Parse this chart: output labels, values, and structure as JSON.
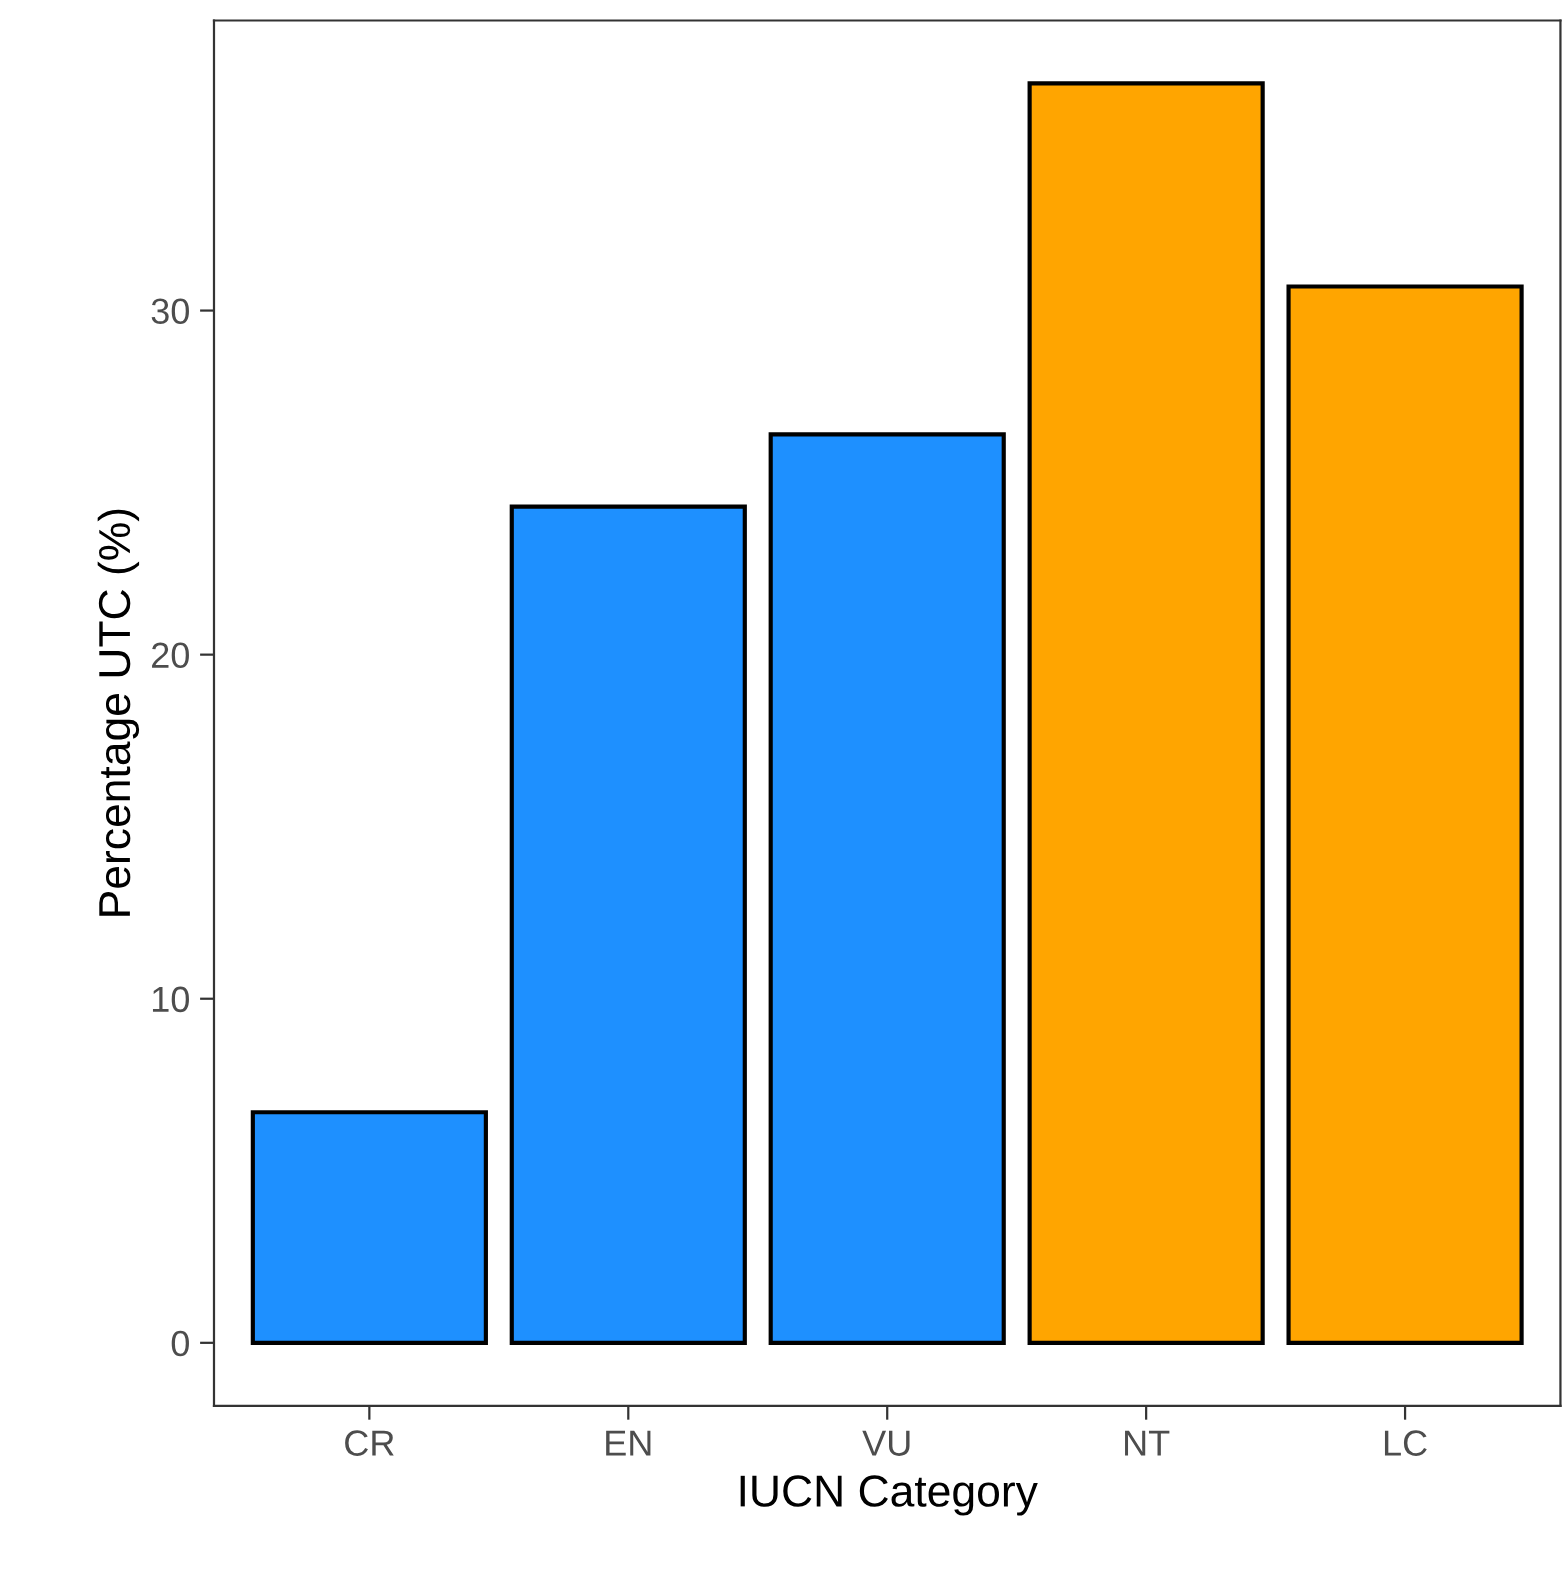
{
  "chart_data": {
    "type": "bar",
    "xlabel": "IUCN Category",
    "ylabel": "Percentage UTC (%)",
    "categories": [
      "CR",
      "EN",
      "VU",
      "NT",
      "LC"
    ],
    "values": [
      6.7,
      24.3,
      26.4,
      36.6,
      30.7
    ],
    "colors": [
      "#1e90ff",
      "#1e90ff",
      "#1e90ff",
      "#ffa500",
      "#ffa500"
    ],
    "ylim": [
      -1.83,
      38.43
    ],
    "yticks": [
      0,
      10,
      20,
      30
    ],
    "grid": false,
    "legend": false
  }
}
